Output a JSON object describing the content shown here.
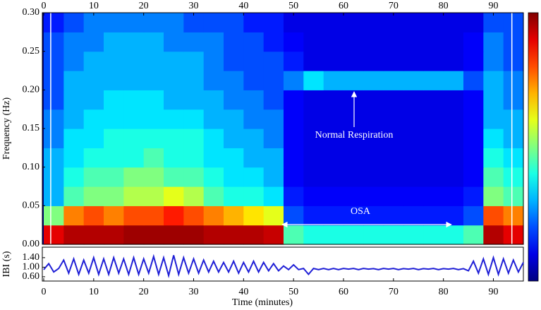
{
  "chart_data": [
    {
      "type": "heatmap",
      "ylabel": "Frequency (Hz)",
      "x_bins": [
        0,
        4,
        8,
        12,
        16,
        20,
        24,
        28,
        32,
        36,
        40,
        44,
        48,
        52,
        56,
        60,
        64,
        68,
        72,
        76,
        80,
        84,
        88,
        92,
        96
      ],
      "y_bins": [
        0,
        0.025,
        0.05,
        0.075,
        0.1,
        0.125,
        0.15,
        0.175,
        0.2,
        0.225,
        0.25,
        0.275,
        0.3
      ],
      "values": [
        [
          0.9,
          0.95,
          0.95,
          0.95,
          0.97,
          0.97,
          0.97,
          0.97,
          0.95,
          0.95,
          0.95,
          0.93,
          0.45,
          0.4,
          0.4,
          0.4,
          0.4,
          0.4,
          0.4,
          0.4,
          0.4,
          0.45,
          0.95,
          0.9
        ],
        [
          0.5,
          0.75,
          0.8,
          0.75,
          0.8,
          0.8,
          0.85,
          0.8,
          0.75,
          0.7,
          0.65,
          0.6,
          0.2,
          0.15,
          0.15,
          0.15,
          0.15,
          0.15,
          0.15,
          0.15,
          0.15,
          0.2,
          0.8,
          0.75
        ],
        [
          0.3,
          0.45,
          0.5,
          0.5,
          0.55,
          0.55,
          0.6,
          0.55,
          0.45,
          0.4,
          0.4,
          0.35,
          0.15,
          0.12,
          0.12,
          0.12,
          0.12,
          0.12,
          0.12,
          0.12,
          0.12,
          0.15,
          0.5,
          0.45
        ],
        [
          0.3,
          0.4,
          0.45,
          0.45,
          0.5,
          0.5,
          0.45,
          0.45,
          0.4,
          0.35,
          0.35,
          0.3,
          0.12,
          0.1,
          0.1,
          0.1,
          0.1,
          0.1,
          0.1,
          0.1,
          0.1,
          0.12,
          0.45,
          0.4
        ],
        [
          0.3,
          0.35,
          0.4,
          0.4,
          0.4,
          0.45,
          0.4,
          0.4,
          0.35,
          0.35,
          0.3,
          0.3,
          0.12,
          0.1,
          0.1,
          0.1,
          0.1,
          0.1,
          0.1,
          0.1,
          0.1,
          0.12,
          0.4,
          0.35
        ],
        [
          0.25,
          0.35,
          0.35,
          0.4,
          0.4,
          0.4,
          0.4,
          0.4,
          0.35,
          0.3,
          0.3,
          0.25,
          0.12,
          0.1,
          0.1,
          0.1,
          0.1,
          0.1,
          0.1,
          0.1,
          0.1,
          0.12,
          0.35,
          0.3
        ],
        [
          0.25,
          0.3,
          0.35,
          0.35,
          0.35,
          0.35,
          0.35,
          0.35,
          0.3,
          0.3,
          0.25,
          0.25,
          0.12,
          0.1,
          0.1,
          0.1,
          0.1,
          0.1,
          0.1,
          0.1,
          0.1,
          0.12,
          0.3,
          0.3
        ],
        [
          0.2,
          0.3,
          0.3,
          0.35,
          0.35,
          0.35,
          0.3,
          0.3,
          0.3,
          0.25,
          0.25,
          0.2,
          0.12,
          0.1,
          0.1,
          0.1,
          0.1,
          0.1,
          0.1,
          0.1,
          0.1,
          0.12,
          0.3,
          0.25
        ],
        [
          0.2,
          0.3,
          0.3,
          0.3,
          0.3,
          0.3,
          0.3,
          0.3,
          0.25,
          0.25,
          0.2,
          0.2,
          0.25,
          0.35,
          0.3,
          0.3,
          0.3,
          0.3,
          0.3,
          0.3,
          0.3,
          0.2,
          0.3,
          0.25
        ],
        [
          0.2,
          0.25,
          0.3,
          0.3,
          0.3,
          0.3,
          0.3,
          0.3,
          0.25,
          0.2,
          0.2,
          0.2,
          0.15,
          0.1,
          0.1,
          0.1,
          0.1,
          0.1,
          0.1,
          0.1,
          0.1,
          0.12,
          0.25,
          0.2
        ],
        [
          0.2,
          0.25,
          0.25,
          0.3,
          0.3,
          0.3,
          0.25,
          0.25,
          0.25,
          0.2,
          0.2,
          0.15,
          0.12,
          0.1,
          0.1,
          0.1,
          0.1,
          0.1,
          0.1,
          0.1,
          0.1,
          0.12,
          0.25,
          0.2
        ],
        [
          0.15,
          0.2,
          0.25,
          0.25,
          0.25,
          0.25,
          0.25,
          0.2,
          0.2,
          0.2,
          0.15,
          0.15,
          0.1,
          0.1,
          0.1,
          0.1,
          0.1,
          0.1,
          0.1,
          0.1,
          0.1,
          0.1,
          0.2,
          0.2
        ]
      ],
      "zlim": [
        0,
        1
      ],
      "xlim": [
        0,
        96
      ],
      "xticks": [
        0,
        10,
        20,
        30,
        40,
        50,
        60,
        70,
        80,
        90
      ],
      "ylim": [
        0,
        0.3
      ],
      "yticks": [
        {
          "value": 0,
          "label": "0.00"
        },
        {
          "value": 0.05,
          "label": "0.05"
        },
        {
          "value": 0.1,
          "label": "0.10"
        },
        {
          "value": 0.15,
          "label": "0.15"
        },
        {
          "value": 0.2,
          "label": "0.20"
        },
        {
          "value": 0.25,
          "label": "0.25"
        },
        {
          "value": 0.3,
          "label": "0.30"
        }
      ],
      "vlines": [
        1.4,
        93.7
      ],
      "annotations": [
        "Normal Respiration",
        "OSA"
      ]
    },
    {
      "type": "line",
      "xlabel": "Time (minutes)",
      "ylabel": "IBI (s)",
      "color": "#1f1fd6",
      "x": [
        0,
        1,
        2,
        3,
        4,
        5,
        6,
        7,
        8,
        9,
        10,
        11,
        12,
        13,
        14,
        15,
        16,
        17,
        18,
        19,
        20,
        21,
        22,
        23,
        24,
        25,
        26,
        27,
        28,
        29,
        30,
        31,
        32,
        33,
        34,
        35,
        36,
        37,
        38,
        39,
        40,
        41,
        42,
        43,
        44,
        45,
        46,
        47,
        48,
        49,
        50,
        51,
        52,
        53,
        54,
        55,
        56,
        57,
        58,
        59,
        60,
        61,
        62,
        63,
        64,
        65,
        66,
        67,
        68,
        69,
        70,
        71,
        72,
        73,
        74,
        75,
        76,
        77,
        78,
        79,
        80,
        81,
        82,
        83,
        84,
        85,
        86,
        87,
        88,
        89,
        90,
        91,
        92,
        93,
        94,
        95,
        96
      ],
      "values": [
        0.9,
        1.15,
        0.8,
        0.95,
        1.3,
        0.75,
        1.35,
        0.7,
        1.3,
        0.75,
        1.4,
        0.7,
        1.35,
        0.7,
        1.4,
        0.75,
        1.35,
        0.7,
        1.4,
        0.7,
        1.35,
        0.75,
        1.45,
        0.7,
        1.4,
        0.65,
        1.5,
        0.7,
        1.4,
        0.75,
        1.35,
        0.75,
        1.3,
        0.8,
        1.25,
        0.8,
        1.2,
        0.8,
        1.25,
        0.75,
        1.2,
        0.8,
        1.25,
        0.8,
        1.2,
        0.85,
        1.15,
        0.85,
        1.05,
        0.9,
        1.1,
        0.9,
        0.95,
        0.7,
        0.95,
        0.9,
        0.95,
        0.9,
        0.95,
        0.9,
        0.95,
        0.92,
        0.95,
        0.9,
        0.95,
        0.92,
        0.94,
        0.9,
        0.95,
        0.92,
        0.95,
        0.9,
        0.94,
        0.92,
        0.95,
        0.9,
        0.94,
        0.92,
        0.95,
        0.9,
        0.94,
        0.92,
        0.95,
        0.9,
        0.94,
        0.85,
        1.25,
        0.75,
        1.35,
        0.7,
        1.4,
        0.7,
        1.35,
        0.75,
        1.3,
        0.8,
        1.2
      ],
      "xlim": [
        0,
        96
      ],
      "xticks": [
        0,
        10,
        20,
        30,
        40,
        50,
        60,
        70,
        80,
        90
      ],
      "ylim": [
        0.42,
        1.84
      ],
      "yticks": [
        {
          "value": 0.6,
          "label": "0.60"
        },
        {
          "value": 1.0,
          "label": "1.00"
        },
        {
          "value": 1.4,
          "label": "1.40"
        }
      ]
    }
  ]
}
